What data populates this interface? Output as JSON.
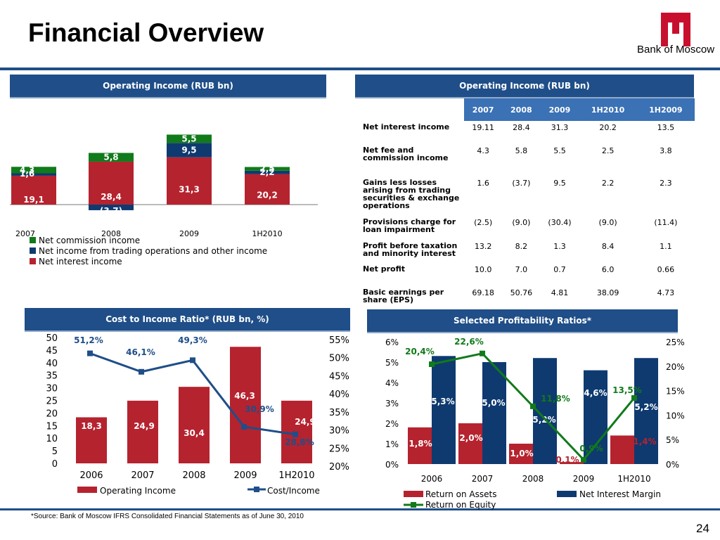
{
  "title": "Financial Overview",
  "logo_text": "Bank of Moscow",
  "footnote": "*Source: Bank of Moscow IFRS Consolidated Financial Statements as of June  30, 2010",
  "page_number": "24",
  "colors": {
    "navy": "#1f4e88",
    "red": "#b5232f",
    "green": "#117a1a",
    "blue": "#0e3a70",
    "accent_green": "#117a1a",
    "logo_red": "#c8102e"
  },
  "panels": {
    "op_income_chart_header": "Operating Income (RUB bn)",
    "op_income_table_header": "Operating Income (RUB bn)",
    "cost_income_header": "Cost to Income Ratio* (RUB bn, %)",
    "profitability_header": "Selected Profitability Ratios*"
  },
  "table": {
    "columns": [
      "",
      "2007",
      "2008",
      "2009",
      "1H2010",
      "1H2009"
    ],
    "rows": [
      {
        "label": "Net interest income",
        "values": [
          "19.11",
          "28.4",
          "31.3",
          "20.2",
          "13.5"
        ]
      },
      {
        "label": "Net fee and commission income",
        "values": [
          "4.3",
          "5.8",
          "5.5",
          "2.5",
          "3.8"
        ]
      },
      {
        "label": "Gains less losses arising from trading securities & exchange operations",
        "values": [
          "1.6",
          "(3.7)",
          "9.5",
          "2.2",
          "2.3"
        ]
      },
      {
        "label": "Provisions charge for loan impairment",
        "values": [
          "(2.5)",
          "(9.0)",
          "(30.4)",
          "(9.0)",
          "(11.4)"
        ]
      },
      {
        "label": "Profit before taxation and minority interest",
        "values": [
          "13.2",
          "8.2",
          "1.3",
          "8.4",
          "1.1"
        ]
      },
      {
        "label": "Net profit",
        "values": [
          "10.0",
          "7.0",
          "0.7",
          "6.0",
          "0.66"
        ]
      },
      {
        "label": "Basic earnings per share (EPS)",
        "values": [
          "69.18",
          "50.76",
          "4.81",
          "38.09",
          "4.73"
        ]
      }
    ]
  },
  "chart_data": [
    {
      "type": "bar",
      "stacked": true,
      "categories": [
        "2007",
        "2008",
        "2009",
        "1H2010"
      ],
      "series": [
        {
          "name": "Net interest income",
          "values": [
            19.1,
            28.4,
            31.3,
            20.2
          ],
          "labels": [
            "19,1",
            "28,4",
            "31,3",
            "20,2"
          ],
          "color": "#b5232f"
        },
        {
          "name": "Net income from trading operations and other income",
          "values": [
            1.6,
            -3.7,
            9.5,
            2.2
          ],
          "labels": [
            "1,6",
            "(3,7)",
            "9,5",
            "2,2"
          ],
          "color": "#0e3a70"
        },
        {
          "name": "Net commission income",
          "values": [
            4.3,
            5.8,
            5.5,
            2.5
          ],
          "labels": [
            "4,3",
            "5,8",
            "5,5",
            "2,5"
          ],
          "color": "#117a1a"
        }
      ],
      "legend_order": [
        "Net commission income",
        "Net income from trading operations and other income",
        "Net interest income"
      ]
    },
    {
      "type": "bar+line",
      "categories": [
        "2006",
        "2007",
        "2008",
        "2009",
        "1H2010"
      ],
      "yticks_left": [
        "0",
        "5",
        "10",
        "15",
        "20",
        "25",
        "30",
        "35",
        "40",
        "45",
        "50"
      ],
      "yticks_right": [
        "20%",
        "25%",
        "30%",
        "35%",
        "40%",
        "45%",
        "50%",
        "55%"
      ],
      "ylim_left": [
        0,
        50
      ],
      "ylim_right": [
        20,
        55
      ],
      "series": [
        {
          "name": "Operating Income",
          "kind": "bar",
          "values": [
            18.3,
            24.9,
            30.4,
            46.3,
            24.9
          ],
          "labels": [
            "18,3",
            "24,9",
            "30,4",
            "46,3",
            "24,9"
          ],
          "color": "#b5232f"
        },
        {
          "name": "Cost/Income",
          "kind": "line",
          "values": [
            51.2,
            46.1,
            49.3,
            30.9,
            28.8
          ],
          "labels": [
            "51,2%",
            "46,1%",
            "49,3%",
            "30,9%",
            "28,8%"
          ],
          "color": "#1f4e88"
        }
      ]
    },
    {
      "type": "bar+line",
      "categories": [
        "2006",
        "2007",
        "2008",
        "2009",
        "1H2010"
      ],
      "yticks_left": [
        "0%",
        "1%",
        "2%",
        "3%",
        "4%",
        "5%",
        "6%"
      ],
      "yticks_right": [
        "0%",
        "5%",
        "10%",
        "15%",
        "20%",
        "25%"
      ],
      "ylim_left": [
        0,
        6
      ],
      "ylim_right": [
        0,
        25
      ],
      "series": [
        {
          "name": "Return on Assets",
          "kind": "bar",
          "values": [
            1.8,
            2.0,
            1.0,
            0.1,
            1.4
          ],
          "labels": [
            "1,8%",
            "2,0%",
            "1,0%",
            "0,1%",
            "1,4%"
          ],
          "color": "#b5232f"
        },
        {
          "name": "Net Interest Margin",
          "kind": "bar",
          "values": [
            5.3,
            5.0,
            5.2,
            4.6,
            5.2
          ],
          "labels": [
            "5,3%",
            "5,0%",
            "5,2%",
            "4,6%",
            "5,2%"
          ],
          "color": "#0e3a70"
        },
        {
          "name": "Return on Equity",
          "kind": "line",
          "values": [
            20.4,
            22.6,
            11.8,
            0.9,
            13.5
          ],
          "labels": [
            "20,4%",
            "22,6%",
            "11,8%",
            "0,9%",
            "13,5%"
          ],
          "color": "#117a1a"
        }
      ]
    }
  ]
}
